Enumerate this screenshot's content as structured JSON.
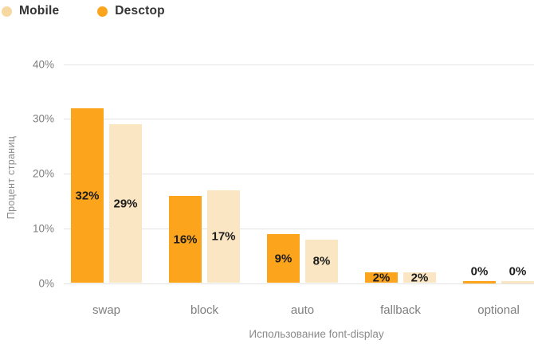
{
  "legend": [
    {
      "label": "Mobile",
      "color": "#f8d8a1"
    },
    {
      "label": "Desctop",
      "color": "#fba41c"
    }
  ],
  "chart_data": {
    "type": "bar",
    "title": "",
    "categories": [
      "swap",
      "block",
      "auto",
      "fallback",
      "optional"
    ],
    "series": [
      {
        "name": "Desctop",
        "color": "#fba41c",
        "values": [
          32,
          16,
          9,
          2,
          0
        ]
      },
      {
        "name": "Mobile",
        "color": "#fae6c3",
        "values": [
          29,
          17,
          8,
          2,
          0
        ]
      }
    ],
    "value_label_suffix": "%",
    "xlabel": "Использование font-display",
    "ylabel": "Процент страниц",
    "ylim": [
      0,
      40
    ],
    "ytick_values": [
      0,
      10,
      20,
      30,
      40
    ],
    "ytick_labels": [
      "0%",
      "10%",
      "20%",
      "30%",
      "40%"
    ],
    "grid": true,
    "legend_position": "top-left"
  }
}
